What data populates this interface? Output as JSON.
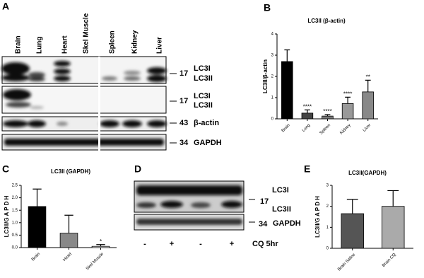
{
  "panel_labels": [
    "A",
    "B",
    "C",
    "D",
    "E"
  ],
  "blot_a": {
    "lanes": [
      "Brain",
      "Lung",
      "Heart",
      "Skel Muscle",
      "Spleen",
      "Kidney",
      "Liver"
    ],
    "rows": [
      {
        "mw": "17",
        "labels": [
          "LC3I",
          "LC3II"
        ]
      },
      {
        "mw": "17",
        "labels": [
          "LC3I",
          "LC3II"
        ]
      },
      {
        "mw": "43",
        "labels": [
          "β-actin"
        ]
      },
      {
        "mw": "34",
        "labels": [
          "GAPDH"
        ]
      }
    ]
  },
  "blot_d": {
    "rows": [
      {
        "mw": "17",
        "labels": [
          "LC3I",
          "LC3II"
        ]
      },
      {
        "mw": "34",
        "labels": [
          "GAPDH"
        ]
      }
    ],
    "lanes": [
      "-",
      "+",
      "-",
      "+"
    ],
    "treatment": "CQ 5hr"
  },
  "chart_data": [
    {
      "type": "bar",
      "title": "LC3II (β-actin)",
      "y_label": "LC3II/β-actin",
      "categories": [
        "Brain",
        "Lung",
        "Spleen",
        "Kidney",
        "Liver"
      ],
      "values": [
        2.7,
        0.27,
        0.13,
        0.72,
        1.27
      ],
      "errors": [
        0.55,
        0.15,
        0.07,
        0.3,
        0.55
      ],
      "annotations": [
        null,
        "****",
        "****",
        "****",
        "**"
      ],
      "colors": [
        "#000000",
        "#444444",
        "#777777",
        "#999999",
        "#888888"
      ],
      "ylim": [
        0,
        4
      ],
      "yticks": [
        0,
        1,
        2,
        3,
        4
      ]
    },
    {
      "type": "bar",
      "title": "LC3II (GAPDH)",
      "y_label": "LC3II/G A P D H",
      "categories": [
        "Brain",
        "Heart",
        "Skel Muscle"
      ],
      "values": [
        1.65,
        0.58,
        0.05
      ],
      "errors": [
        0.7,
        0.72,
        0.07
      ],
      "annotations": [
        null,
        null,
        "*"
      ],
      "colors": [
        "#000000",
        "#888888",
        "#ffffff"
      ],
      "ylim": [
        0,
        2.5
      ],
      "yticks": [
        {
          "value": 0,
          "label": "0.0"
        },
        0.5,
        {
          "value": 1,
          "label": "1.0"
        },
        1.5,
        {
          "value": 2,
          "label": "2.0"
        },
        2.5
      ]
    },
    {
      "type": "bar",
      "title": "LC3II(GAPDH)",
      "y_label": "LC3II/G A P D H",
      "categories": [
        "Brain Saline",
        "Brain CQ"
      ],
      "values": [
        1.65,
        2.0
      ],
      "errors": [
        0.68,
        0.75
      ],
      "annotations": [
        null,
        null
      ],
      "colors": [
        "#555555",
        "#aaaaaa"
      ],
      "ylim": [
        0,
        3
      ],
      "yticks": [
        0,
        1,
        2,
        3
      ]
    }
  ]
}
